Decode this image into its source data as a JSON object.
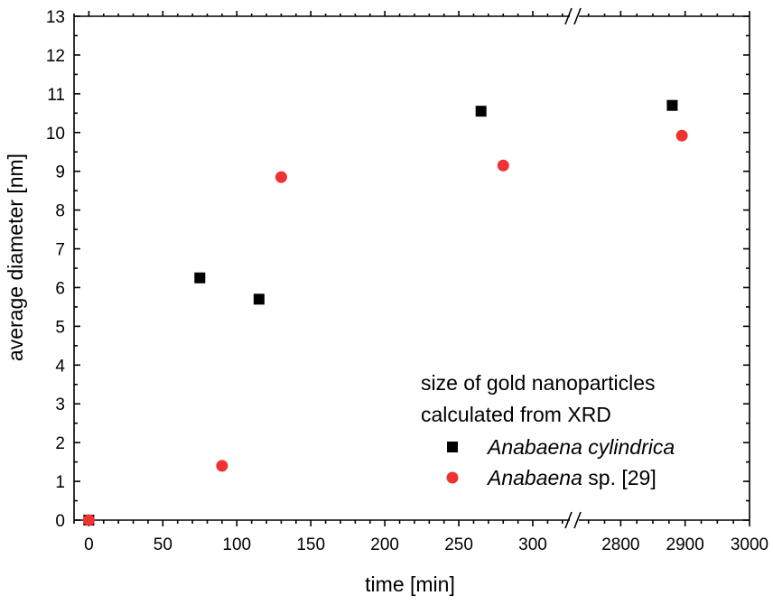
{
  "chart_data": {
    "type": "scatter",
    "xlabel": "time [min]",
    "ylabel": "average diameter [nm]",
    "ylim": [
      0,
      13
    ],
    "yticks": [
      0,
      1,
      2,
      3,
      4,
      5,
      6,
      7,
      8,
      9,
      10,
      11,
      12,
      13
    ],
    "x_segments": [
      {
        "range": [
          -10,
          325
        ],
        "ticks": [
          0,
          50,
          100,
          150,
          200,
          250,
          300
        ]
      },
      {
        "range": [
          2735,
          3000
        ],
        "ticks": [
          2800,
          2900,
          3000
        ]
      }
    ],
    "axis_break": "between 325 and 2735",
    "legend": {
      "title_line1": "size of gold nanoparticles",
      "title_line2": "calculated from XRD",
      "placement": "bottom-right"
    },
    "series": [
      {
        "name": "Anabaena cylindrica",
        "name_italic": "Anabaena cylindrica",
        "name_rest": "",
        "marker": "square",
        "color": "#000000",
        "points": [
          [
            0,
            0
          ],
          [
            75,
            6.25
          ],
          [
            115,
            5.7
          ],
          [
            265,
            10.55
          ],
          [
            2880,
            10.7
          ]
        ]
      },
      {
        "name": "Anabaena sp. [29]",
        "name_italic": "Anabaena",
        "name_rest": " sp. [29]",
        "marker": "circle",
        "color": "#ee3333",
        "points": [
          [
            0,
            0
          ],
          [
            90,
            1.4
          ],
          [
            130,
            8.85
          ],
          [
            280,
            9.15
          ],
          [
            2895,
            9.92
          ]
        ]
      }
    ]
  }
}
